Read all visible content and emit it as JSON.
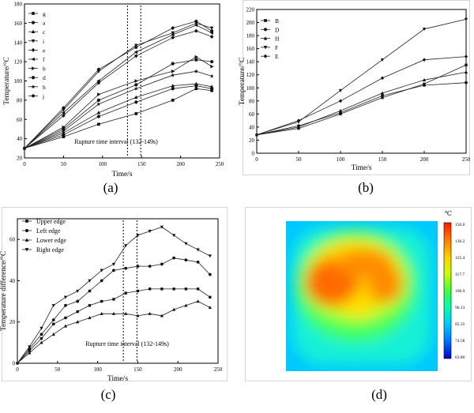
{
  "panels": [
    {
      "id": "a",
      "label": "(a)"
    },
    {
      "id": "b",
      "label": "(b)"
    },
    {
      "id": "c",
      "label": "(c)"
    },
    {
      "id": "d",
      "label": "(d)"
    }
  ],
  "chart_data": [
    {
      "id": "a",
      "type": "line",
      "xlabel": "Time/s",
      "ylabel": "Temperature/°C",
      "xlim": [
        0,
        250
      ],
      "ylim": [
        20,
        180
      ],
      "xticks": [
        0,
        50,
        100,
        150,
        200,
        250
      ],
      "yticks": [
        20,
        40,
        60,
        80,
        100,
        120,
        140,
        160,
        180
      ],
      "grid": false,
      "legend": "top-left",
      "annotation": "Rupture time interval (132-149s)",
      "vlines": [
        132,
        149
      ],
      "x": [
        0,
        50,
        95,
        143,
        190,
        220,
        240
      ],
      "series": [
        {
          "name": "g",
          "marker": "square",
          "values": [
            30,
            42,
            55,
            66,
            80,
            92,
            90
          ]
        },
        {
          "name": "a",
          "marker": "circle",
          "values": [
            30,
            44,
            63,
            78,
            92,
            95,
            92
          ]
        },
        {
          "name": "c",
          "marker": "triangle-up",
          "values": [
            30,
            46,
            67,
            83,
            95,
            97,
            94
          ]
        },
        {
          "name": "i",
          "marker": "triangle-down",
          "values": [
            30,
            70,
            110,
            137,
            150,
            160,
            155
          ]
        },
        {
          "name": "e",
          "marker": "diamond",
          "values": [
            30,
            64,
            98,
            126,
            145,
            152,
            146
          ]
        },
        {
          "name": "f",
          "marker": "triangle-left",
          "values": [
            30,
            67,
            100,
            130,
            148,
            158,
            150
          ]
        },
        {
          "name": "b",
          "marker": "triangle-right",
          "values": [
            30,
            52,
            86,
            100,
            110,
            125,
            115
          ]
        },
        {
          "name": "d",
          "marker": "hexagon",
          "values": [
            30,
            50,
            80,
            96,
            118,
            122,
            120
          ]
        },
        {
          "name": "h",
          "marker": "star",
          "values": [
            30,
            48,
            76,
            92,
            106,
            110,
            105
          ]
        },
        {
          "name": "j",
          "marker": "pentagon",
          "values": [
            30,
            72,
            112,
            135,
            155,
            162,
            152
          ]
        }
      ]
    },
    {
      "id": "b",
      "type": "line",
      "xlabel": "Time/s",
      "ylabel": "Temperature/°C",
      "xlim": [
        0,
        250
      ],
      "ylim": [
        0,
        220
      ],
      "xticks": [
        0,
        50,
        100,
        150,
        200,
        250
      ],
      "yticks": [
        0,
        20,
        40,
        60,
        80,
        100,
        120,
        140,
        160,
        180,
        200,
        220
      ],
      "grid": false,
      "legend": "top-left",
      "x": [
        0,
        50,
        100,
        150,
        200,
        250
      ],
      "series": [
        {
          "name": "B",
          "marker": "square",
          "values": [
            28,
            38,
            60,
            85,
            106,
            135
          ]
        },
        {
          "name": "D",
          "marker": "circle",
          "values": [
            28,
            42,
            62,
            88,
            104,
            108
          ]
        },
        {
          "name": "H",
          "marker": "triangle-up",
          "values": [
            28,
            40,
            65,
            92,
            112,
            124
          ]
        },
        {
          "name": "F",
          "marker": "triangle-down",
          "values": [
            28,
            48,
            96,
            143,
            190,
            205
          ]
        },
        {
          "name": "E",
          "marker": "diamond",
          "values": [
            28,
            50,
            80,
            115,
            143,
            148
          ]
        }
      ]
    },
    {
      "id": "c",
      "type": "line",
      "xlabel": "Time/s",
      "ylabel": "Temperature difference/°C",
      "xlim": [
        0,
        250
      ],
      "ylim": [
        0,
        70
      ],
      "xticks": [
        0,
        50,
        100,
        150,
        200,
        250
      ],
      "yticks": [
        0,
        20,
        40,
        60
      ],
      "grid": false,
      "legend": "top-left",
      "annotation": "Rupture time interval (132-149s)",
      "vlines": [
        132,
        149
      ],
      "x": [
        0,
        15,
        30,
        45,
        60,
        75,
        90,
        105,
        120,
        135,
        150,
        165,
        180,
        195,
        210,
        225,
        240
      ],
      "series": [
        {
          "name": "Upper edge",
          "marker": "square",
          "values": [
            0,
            6,
            12,
            19,
            22,
            25,
            28,
            30,
            31,
            34,
            35,
            36,
            36,
            36,
            36,
            36,
            32
          ]
        },
        {
          "name": "Left edge",
          "marker": "circle",
          "values": [
            0,
            7,
            14,
            21,
            28,
            30,
            35,
            40,
            45,
            46,
            47,
            47,
            48,
            51,
            50,
            49,
            43
          ]
        },
        {
          "name": "Lower edge",
          "marker": "triangle-up",
          "values": [
            0,
            5,
            10,
            14,
            18,
            20,
            22,
            24,
            24,
            24,
            23,
            24,
            23,
            26,
            28,
            30,
            27
          ]
        },
        {
          "name": "Right edge",
          "marker": "triangle-down",
          "values": [
            0,
            8,
            17,
            28,
            32,
            35,
            40,
            45,
            48,
            57,
            62,
            64,
            66,
            62,
            58,
            55,
            52
          ]
        }
      ]
    },
    {
      "id": "d",
      "type": "heatmap",
      "colorbar_unit": "℃",
      "colorbar_ticks": [
        "150.0",
        "136.2",
        "125.4",
        "117.7",
        "106.9",
        "96.13",
        "85.35",
        "74.58",
        "63.80"
      ],
      "colorbar_colors": [
        "#ff1a00",
        "#ff7a00",
        "#ffd000",
        "#c8ff00",
        "#40ff40",
        "#00ffb0",
        "#00c8ff",
        "#0070ff",
        "#0000c8"
      ]
    }
  ]
}
